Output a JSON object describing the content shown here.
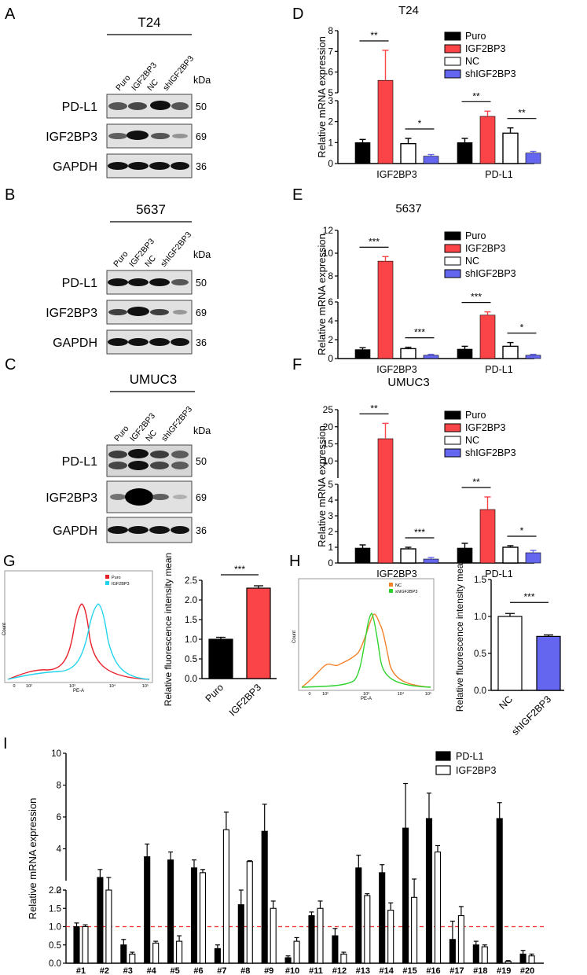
{
  "colors": {
    "puro": "#000000",
    "igf2bp3": "#fb4447",
    "nc": "#ffffff",
    "shigf2bp3": "#6566f0",
    "flow_red": "#e8212a",
    "flow_cyan": "#22d3ee",
    "flow_orange": "#f4822b",
    "flow_green": "#2fd32f",
    "cutoff": "#ff2a2a"
  },
  "panels": {
    "A": "A",
    "B": "B",
    "C": "C",
    "D": "D",
    "E": "E",
    "F": "F",
    "G": "G",
    "H": "H",
    "I": "I"
  },
  "blots": [
    {
      "panel": "A",
      "cell": "T24",
      "lanes": [
        "Puro",
        "IGF2BP3",
        "NC",
        "shIGF2BP3"
      ],
      "unit": "kDa",
      "rows": [
        {
          "label": "PD-L1",
          "kda": "50"
        },
        {
          "label": "IGF2BP3",
          "kda": "69"
        },
        {
          "label": "GAPDH",
          "kda": "36"
        }
      ]
    },
    {
      "panel": "B",
      "cell": "5637",
      "lanes": [
        "Puro",
        "IGF2BP3",
        "NC",
        "shIGF2BP3"
      ],
      "unit": "kDa",
      "rows": [
        {
          "label": "PD-L1",
          "kda": "50"
        },
        {
          "label": "IGF2BP3",
          "kda": "69"
        },
        {
          "label": "GAPDH",
          "kda": "36"
        }
      ]
    },
    {
      "panel": "C",
      "cell": "UMUC3",
      "lanes": [
        "Puro",
        "IGF2BP3",
        "NC",
        "shIGF2BP3"
      ],
      "unit": "kDa",
      "rows": [
        {
          "label": "PD-L1",
          "kda": "50"
        },
        {
          "label": "IGF2BP3",
          "kda": "69"
        },
        {
          "label": "GAPDH",
          "kda": "36"
        }
      ]
    }
  ],
  "chart_data": [
    {
      "id": "D",
      "type": "bar",
      "title": "T24",
      "ylabel": "Relative mRNA expression",
      "categories": [
        "IGF2BP3",
        "PD-L1"
      ],
      "legend": [
        "Puro",
        "IGF2BP3",
        "NC",
        "shIGF2BP3"
      ],
      "series": [
        {
          "name": "Puro",
          "values": [
            1.0,
            1.0
          ],
          "errors": [
            0.15,
            0.2
          ]
        },
        {
          "name": "IGF2BP3",
          "values": [
            5.6,
            2.25
          ],
          "errors": [
            1.45,
            0.25
          ]
        },
        {
          "name": "NC",
          "values": [
            0.95,
            1.45
          ],
          "errors": [
            0.25,
            0.25
          ]
        },
        {
          "name": "shIGF2BP3",
          "values": [
            0.35,
            0.5
          ],
          "errors": [
            0.08,
            0.08
          ]
        }
      ],
      "y_break": [
        3,
        5
      ],
      "y_ticks_lower": [
        "0",
        "1",
        "2",
        "3"
      ],
      "y_ticks_upper": [
        "5",
        "6",
        "7",
        "8"
      ],
      "significance": [
        {
          "category": 0,
          "from": 0,
          "to": 1,
          "label": "**"
        },
        {
          "category": 0,
          "from": 2,
          "to": 3,
          "label": "*"
        },
        {
          "category": 1,
          "from": 0,
          "to": 1,
          "label": "**"
        },
        {
          "category": 1,
          "from": 2,
          "to": 3,
          "label": "**"
        }
      ]
    },
    {
      "id": "E",
      "type": "bar",
      "title": "5637",
      "ylabel": "Relative mRNA expression",
      "categories": [
        "IGF2BP3",
        "PD-L1"
      ],
      "legend": [
        "Puro",
        "IGF2BP3",
        "NC",
        "shIGF2BP3"
      ],
      "series": [
        {
          "name": "Puro",
          "values": [
            0.95,
            1.0
          ],
          "errors": [
            0.2,
            0.3
          ]
        },
        {
          "name": "IGF2BP3",
          "values": [
            9.3,
            4.6
          ],
          "errors": [
            0.4,
            0.35
          ]
        },
        {
          "name": "NC",
          "values": [
            1.05,
            1.3
          ],
          "errors": [
            0.15,
            0.4
          ]
        },
        {
          "name": "shIGF2BP3",
          "values": [
            0.35,
            0.35
          ],
          "errors": [
            0.1,
            0.1
          ]
        }
      ],
      "y_break": [
        6,
        6
      ],
      "y_ticks_lower": [
        "0",
        "2",
        "4",
        "6"
      ],
      "y_ticks_upper": [
        "6",
        "8",
        "10",
        "12"
      ],
      "significance": [
        {
          "category": 0,
          "from": 0,
          "to": 1,
          "label": "***"
        },
        {
          "category": 0,
          "from": 2,
          "to": 3,
          "label": "***"
        },
        {
          "category": 1,
          "from": 0,
          "to": 1,
          "label": "***"
        },
        {
          "category": 1,
          "from": 2,
          "to": 3,
          "label": "*"
        }
      ]
    },
    {
      "id": "F",
      "type": "bar",
      "title": "UMUC3",
      "ylabel": "Relative mRNA expression",
      "categories": [
        "IGF2BP3",
        "PD-L1"
      ],
      "legend": [
        "Puro",
        "IGF2BP3",
        "NC",
        "shIGF2BP3"
      ],
      "series": [
        {
          "name": "Puro",
          "values": [
            0.95,
            0.95
          ],
          "errors": [
            0.2,
            0.3
          ]
        },
        {
          "name": "IGF2BP3",
          "values": [
            16.5,
            3.4
          ],
          "errors": [
            4.5,
            0.8
          ]
        },
        {
          "name": "NC",
          "values": [
            0.9,
            1.0
          ],
          "errors": [
            0.1,
            0.1
          ]
        },
        {
          "name": "shIGF2BP3",
          "values": [
            0.25,
            0.65
          ],
          "errors": [
            0.1,
            0.15
          ]
        }
      ],
      "y_break": [
        5,
        5
      ],
      "y_ticks_lower": [
        "0",
        "1",
        "2",
        "3",
        "4",
        "5"
      ],
      "y_ticks_upper": [
        "5",
        "10",
        "15",
        "20",
        "25"
      ],
      "significance": [
        {
          "category": 0,
          "from": 0,
          "to": 1,
          "label": "**"
        },
        {
          "category": 0,
          "from": 2,
          "to": 3,
          "label": "***"
        },
        {
          "category": 1,
          "from": 0,
          "to": 1,
          "label": "**"
        },
        {
          "category": 1,
          "from": 2,
          "to": 3,
          "label": "*"
        }
      ]
    },
    {
      "id": "G-flow",
      "type": "line",
      "xlabel": "PE-A",
      "ylabel": "Count",
      "legend": [
        "Puro",
        "IGF2BP3"
      ],
      "x_ticks": [
        "0",
        "10²",
        "10³",
        "10⁴",
        "10⁵"
      ]
    },
    {
      "id": "G-bar",
      "type": "bar",
      "ylabel": "Relative fluorescence intensity mean",
      "categories": [
        "Puro",
        "IGF2BP3"
      ],
      "values": [
        1.0,
        2.3
      ],
      "errors": [
        0.05,
        0.06
      ],
      "y_ticks": [
        "0.0",
        "0.5",
        "1.0",
        "1.5",
        "2.0",
        "2.5"
      ],
      "ylim": [
        0,
        2.5
      ],
      "significance": "***"
    },
    {
      "id": "H-flow",
      "type": "line",
      "xlabel": "PE-A",
      "ylabel": "Count",
      "legend": [
        "NC",
        "shIGF2BP3"
      ],
      "x_ticks": [
        "0",
        "10²",
        "10³",
        "10⁴",
        "10⁵"
      ]
    },
    {
      "id": "H-bar",
      "type": "bar",
      "ylabel": "Relative fluorescence intensity mean",
      "categories": [
        "NC",
        "shIGF2BP3"
      ],
      "values": [
        1.0,
        0.73
      ],
      "errors": [
        0.04,
        0.02
      ],
      "y_ticks": [
        "0.0",
        "0.5",
        "1.0",
        "1.5"
      ],
      "ylim": [
        0,
        1.5
      ],
      "significance": "***"
    },
    {
      "id": "I",
      "type": "bar",
      "ylabel": "Relative mRNA expression",
      "categories": [
        "#1",
        "#2",
        "#3",
        "#4",
        "#5",
        "#6",
        "#7",
        "#8",
        "#9",
        "#10",
        "#11",
        "#12",
        "#13",
        "#14",
        "#15",
        "#16",
        "#17",
        "#18",
        "#19",
        "#20"
      ],
      "legend": [
        "PD-L1",
        "IGF2BP3"
      ],
      "series": [
        {
          "name": "PD-L1",
          "values": [
            1.0,
            2.2,
            0.5,
            3.5,
            3.3,
            2.8,
            0.4,
            1.6,
            5.1,
            0.15,
            1.3,
            0.75,
            2.8,
            2.5,
            5.3,
            5.9,
            0.65,
            0.5,
            5.9,
            0.25
          ],
          "errors": [
            0.1,
            0.5,
            0.15,
            0.8,
            0.5,
            0.5,
            0.1,
            0.4,
            1.7,
            0.05,
            0.1,
            0.2,
            0.8,
            0.5,
            2.8,
            1.6,
            0.5,
            0.1,
            1.0,
            0.1
          ]
        },
        {
          "name": "IGF2BP3",
          "values": [
            1.0,
            2.0,
            0.25,
            0.55,
            0.6,
            2.5,
            5.2,
            3.2,
            1.5,
            0.6,
            1.5,
            0.25,
            1.85,
            1.45,
            1.8,
            3.8,
            1.3,
            0.45,
            0.05,
            0.2
          ],
          "errors": [
            0.05,
            0.2,
            0.05,
            0.05,
            0.15,
            0.2,
            1.1,
            0.05,
            0.2,
            0.1,
            0.2,
            0.05,
            0.05,
            0.2,
            0.3,
            0.4,
            0.25,
            0.05,
            0.02,
            0.05
          ]
        }
      ],
      "y_ticks_lower": [
        "0.0",
        "0.5",
        "1.0",
        "1.5",
        "2.0"
      ],
      "y_ticks_upper": [
        "2",
        "4",
        "6",
        "8",
        "10"
      ],
      "reference_line": 1.0
    }
  ]
}
